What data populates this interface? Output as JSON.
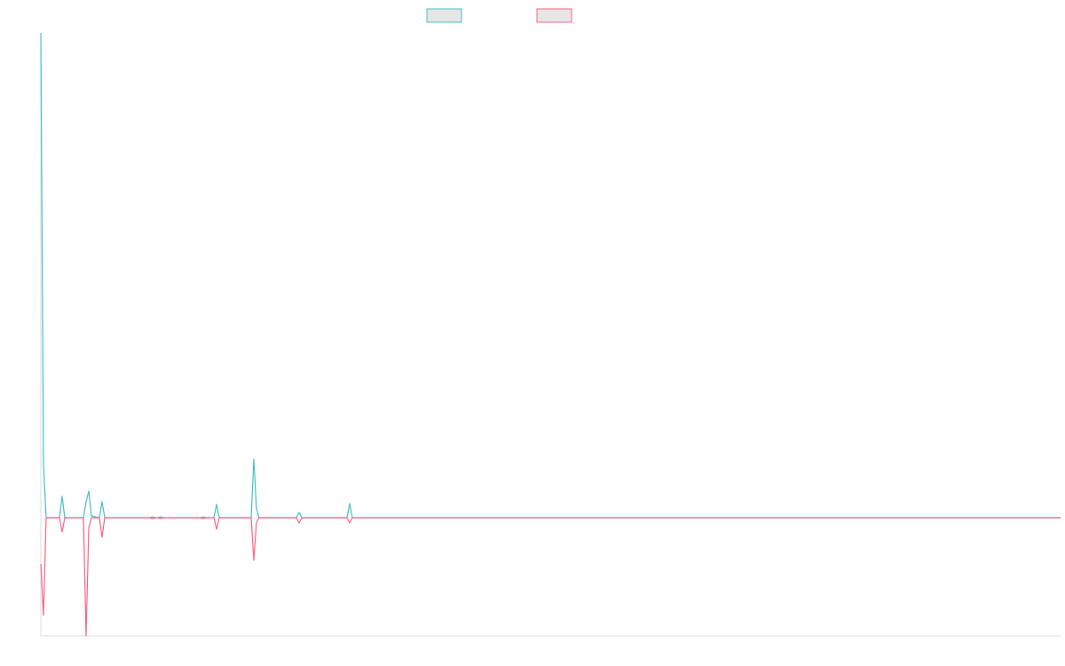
{
  "chart_data": {
    "type": "line",
    "x": [
      0,
      1,
      2,
      7,
      8,
      9,
      16,
      17,
      18,
      19,
      22,
      23,
      24,
      41,
      42,
      43,
      44,
      45,
      46,
      60,
      61,
      62,
      65,
      66,
      67,
      79,
      80,
      81,
      82,
      96,
      97,
      98,
      115,
      116,
      117,
      383
    ],
    "series": [
      {
        "color": "#4bc0c0",
        "values": [
          546,
          60,
          0,
          0,
          24,
          0,
          0,
          18,
          30,
          2,
          0,
          18,
          0,
          0,
          1,
          0,
          0,
          1,
          0,
          0,
          1,
          0,
          0,
          15,
          0,
          0,
          66,
          10,
          0,
          0,
          6,
          0,
          0,
          16,
          0,
          0
        ]
      },
      {
        "color": "#ff6384",
        "values": [
          -52,
          -110,
          0,
          0,
          -16,
          0,
          0,
          -133,
          -12,
          0,
          0,
          -22,
          0,
          0,
          -1,
          0,
          0,
          -1,
          0,
          0,
          -1,
          0,
          0,
          -13,
          0,
          0,
          -48,
          -5,
          0,
          0,
          -6,
          0,
          0,
          -6,
          0,
          0
        ]
      }
    ],
    "xlim": [
      0,
      383
    ],
    "ylim": [
      -133,
      546
    ],
    "legend": "top"
  }
}
